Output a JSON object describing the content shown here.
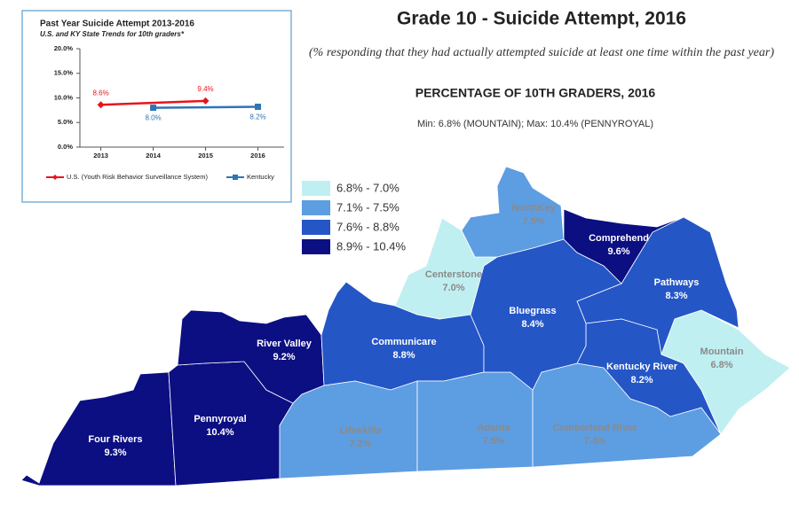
{
  "title": "Grade 10 - Suicide Attempt, 2016",
  "subtitle": "(% responding that they had actually attempted suicide at least one time within the past year)",
  "map_title": "PERCENTAGE OF 10TH GRADERS, 2016",
  "min_max": "Min: 6.8% (MOUNTAIN); Max: 10.4% (PENNYROYAL)",
  "legend": [
    {
      "label": "6.8% - 7.0%",
      "color": "#c0eff1"
    },
    {
      "label": "7.1% - 7.5%",
      "color": "#5d9de2"
    },
    {
      "label": "7.6% - 8.8%",
      "color": "#2456c6"
    },
    {
      "label": "8.9% - 10.4%",
      "color": "#0c0f82"
    }
  ],
  "regions": [
    {
      "name": "Four Rivers",
      "value": "9.3%",
      "color": "#0c0f82"
    },
    {
      "name": "Pennyroyal",
      "value": "10.4%",
      "color": "#0c0f82"
    },
    {
      "name": "River Valley",
      "value": "9.2%",
      "color": "#0c0f82"
    },
    {
      "name": "Communicare",
      "value": "8.8%",
      "color": "#2456c6"
    },
    {
      "name": "Lifeskills",
      "value": "7.2%",
      "color": "#5d9de2"
    },
    {
      "name": "Adanta",
      "value": "7.5%",
      "color": "#5d9de2"
    },
    {
      "name": "Cumberland River",
      "value": "7.4%",
      "color": "#5d9de2"
    },
    {
      "name": "Pathways",
      "value": "8.3%",
      "color": "#2456c6"
    },
    {
      "name": "Kentucky River",
      "value": "8.2%",
      "color": "#2456c6"
    },
    {
      "name": "Mountain",
      "value": "6.8%",
      "color": "#c0eff1"
    },
    {
      "name": "Bluegrass",
      "value": "8.4%",
      "color": "#2456c6"
    },
    {
      "name": "Comprehend",
      "value": "9.6%",
      "color": "#0c0f82"
    },
    {
      "name": "Centerstone",
      "value": "7.0%",
      "color": "#c0eff1"
    },
    {
      "name": "NorthKey",
      "value": "7.5%",
      "color": "#5d9de2"
    }
  ],
  "chart_data": {
    "type": "line",
    "title": "Past Year Suicide Attempt 2013-2016",
    "subtitle": "U.S. and KY State Trends for 10th graders*",
    "xlim": [
      2012.6,
      2016.5
    ],
    "xticks": [
      2013,
      2014,
      2015,
      2016
    ],
    "ylim": [
      0,
      20
    ],
    "yticks": [
      {
        "value": 0,
        "label": "0.0%"
      },
      {
        "value": 5,
        "label": "5.0%"
      },
      {
        "value": 10,
        "label": "10.0%"
      },
      {
        "value": 15,
        "label": "15.0%"
      },
      {
        "value": 20,
        "label": "20.0%"
      }
    ],
    "series": [
      {
        "name": "U.S. (Youth Risk Behavior Surveillance System)",
        "color": "#e8141c",
        "x": [
          2013,
          2015
        ],
        "values": [
          8.6,
          9.4
        ],
        "value_labels": [
          "8.6%",
          "9.4%"
        ]
      },
      {
        "name": "Kentucky",
        "color": "#2e75b6",
        "x": [
          2014,
          2016
        ],
        "values": [
          8.0,
          8.2
        ],
        "value_labels": [
          "8.0%",
          "8.2%"
        ]
      }
    ]
  }
}
